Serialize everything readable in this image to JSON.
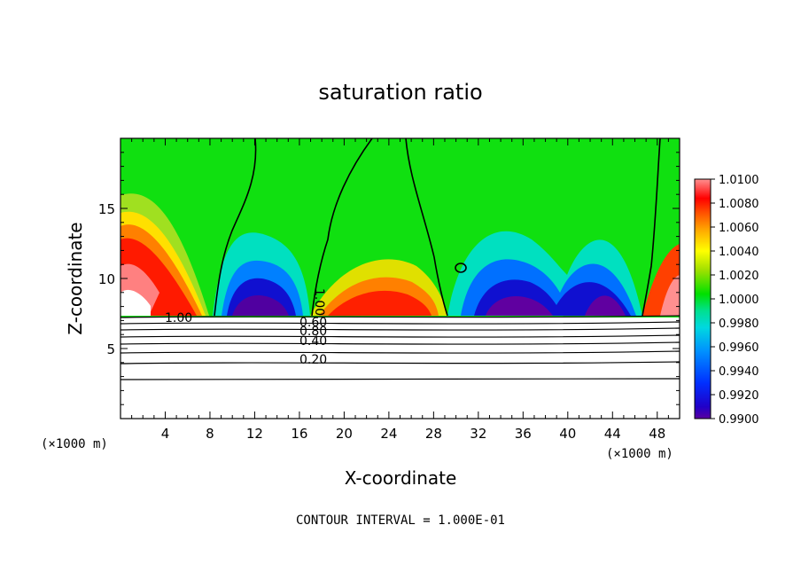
{
  "chart_data": {
    "type": "heatmap",
    "title": "saturation ratio",
    "xlabel": "X-coordinate",
    "ylabel": "Z-coordinate",
    "x_unit_left": "(×1000 m)",
    "x_unit_right": "(×1000 m)",
    "xlim": [
      0,
      50
    ],
    "ylim": [
      0,
      20
    ],
    "x_ticks": [
      4,
      8,
      12,
      16,
      20,
      24,
      28,
      32,
      36,
      40,
      44,
      48
    ],
    "x_tick_labels": [
      "4",
      "8",
      "12",
      "16",
      "20",
      "24",
      "28",
      "32",
      "36",
      "40",
      "44",
      "48"
    ],
    "y_ticks": [
      5,
      10,
      15
    ],
    "y_tick_labels": [
      "5",
      "10",
      "15"
    ],
    "colorbar": {
      "min": 0.99,
      "max": 1.01,
      "tick_labels": [
        "1.0100",
        "1.0080",
        "1.0060",
        "1.0040",
        "1.0020",
        "1.0000",
        "0.9980",
        "0.9960",
        "0.9940",
        "0.9920",
        "0.9900"
      ]
    },
    "contour_labels": [
      "1.00",
      "1.00",
      "0.60",
      "0.80",
      "0.40",
      "0.20"
    ],
    "footer": "CONTOUR INTERVAL = 1.000E-01",
    "grid": false,
    "legend": "colorbar-right"
  }
}
